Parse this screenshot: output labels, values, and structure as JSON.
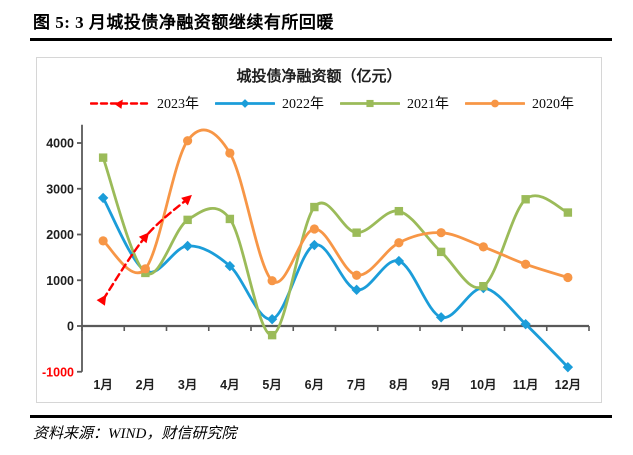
{
  "page": {
    "title": "图 5: 3 月城投债净融资额继续有所回暖",
    "source_note": "资料来源：WIND，财信研究院"
  },
  "chart_data": {
    "type": "line",
    "title": "城投债净融资额（亿元）",
    "categories": [
      "1月",
      "2月",
      "3月",
      "4月",
      "5月",
      "6月",
      "7月",
      "8月",
      "9月",
      "10月",
      "11月",
      "12月"
    ],
    "y_ticks": [
      -1000,
      0,
      1000,
      2000,
      3000,
      4000
    ],
    "ylim": [
      -1000,
      4400
    ],
    "grid": false,
    "legend_position": "top",
    "smoothed_lines": true,
    "colors": {
      "axis": "#595959",
      "labels": "#1f1f1f",
      "negative_tick": "#ff0000"
    },
    "series": [
      {
        "name": "2023年",
        "color": "#ff0000",
        "marker": "triangle",
        "line_style": "dashed",
        "values": [
          580,
          1950,
          2780,
          null,
          null,
          null,
          null,
          null,
          null,
          null,
          null,
          null
        ]
      },
      {
        "name": "2022年",
        "color": "#1b9dd9",
        "marker": "diamond",
        "line_style": "solid",
        "values": [
          2800,
          1200,
          1750,
          1310,
          150,
          1770,
          790,
          1420,
          190,
          830,
          40,
          -900
        ]
      },
      {
        "name": "2021年",
        "color": "#9bbb59",
        "marker": "square",
        "line_style": "solid",
        "values": [
          3680,
          1160,
          2320,
          2340,
          -200,
          2600,
          2040,
          2510,
          1620,
          870,
          2770,
          2480
        ]
      },
      {
        "name": "2020年",
        "color": "#f79646",
        "marker": "circle",
        "line_style": "solid",
        "values": [
          1860,
          1250,
          4050,
          3780,
          990,
          2120,
          1110,
          1820,
          2040,
          1730,
          1350,
          1060
        ]
      }
    ]
  }
}
